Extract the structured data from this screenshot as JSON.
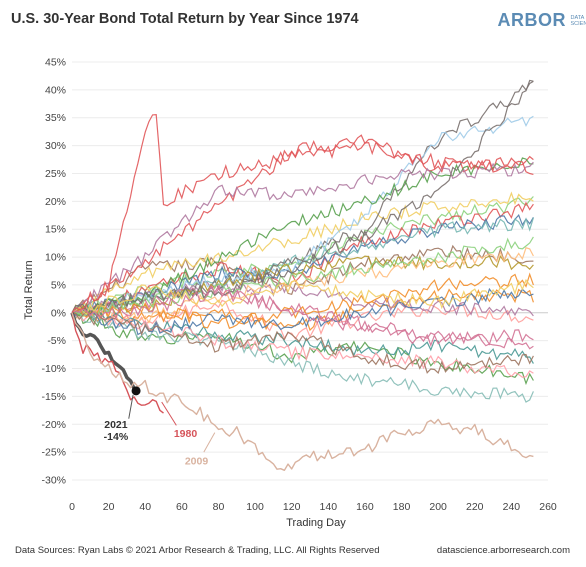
{
  "header": {
    "title": "U.S. 30-Year Bond Total Return by Year Since 1974",
    "brand_main": "ARBOR",
    "brand_sub": "DATA SCIENCE"
  },
  "footer": {
    "source": "Data Sources: Ryan Labs © 2021 Arbor Research & Trading, LLC. All Rights Reserved",
    "site": "datascience.arborresearch.com"
  },
  "colors": {
    "highlight_2021": "#555555",
    "highlight_1980": "#d6545a",
    "highlight_2009": "#d9b3a0"
  },
  "chart_data": {
    "type": "line",
    "title": "U.S. 30-Year Bond Total Return by Year Since 1974",
    "xlabel": "Trading Day",
    "ylabel": "Total Return",
    "xlim": [
      0,
      260
    ],
    "ylim": [
      -30,
      45
    ],
    "x_ticks": [
      0,
      20,
      40,
      60,
      80,
      100,
      120,
      140,
      160,
      180,
      200,
      220,
      240,
      260
    ],
    "y_ticks": [
      45,
      40,
      35,
      30,
      25,
      20,
      15,
      10,
      5,
      0,
      -5,
      -10,
      -15,
      -20,
      -25,
      -30
    ],
    "x_tick_labels": [
      "0",
      "20",
      "40",
      "60",
      "80",
      "100",
      "120",
      "140",
      "160",
      "180",
      "200",
      "220",
      "240",
      "260"
    ],
    "y_tick_labels": [
      "45%",
      "40%",
      "35%",
      "30%",
      "25%",
      "20%",
      "15%",
      "10%",
      "5%",
      "0%",
      "-5%",
      "-10%",
      "-15%",
      "-20%",
      "-25%",
      "-30%"
    ],
    "grid": "horizontal",
    "highlighted": [
      {
        "name": "2021",
        "label": "2021",
        "value_label": "-14%",
        "color": "#555555",
        "x": [
          0,
          4,
          8,
          12,
          16,
          20,
          24,
          28,
          32,
          35
        ],
        "y": [
          0,
          -3,
          -4.5,
          -3.8,
          -6,
          -7.5,
          -9.5,
          -10.8,
          -12.8,
          -14
        ]
      },
      {
        "name": "1980",
        "label": "1980",
        "color": "#d6545a",
        "x": [
          0,
          5,
          10,
          15,
          20,
          25,
          30,
          35,
          40,
          45,
          50
        ],
        "y": [
          0,
          -6.5,
          -5.5,
          -9,
          -8.5,
          -11,
          -14,
          -15.5,
          -17,
          -15,
          -18
        ]
      },
      {
        "name": "2009",
        "label": "2009",
        "color": "#d9b3a0",
        "x": [
          0,
          10,
          20,
          30,
          40,
          50,
          60,
          70,
          80,
          90,
          100,
          110,
          120,
          130,
          140,
          150,
          160,
          170,
          180,
          190,
          200,
          210,
          220,
          230,
          240,
          250,
          253
        ],
        "y": [
          0,
          -7,
          -10,
          -12.5,
          -13,
          -15,
          -16,
          -18,
          -21,
          -21.5,
          -24,
          -27,
          -27.5,
          -26,
          -25.5,
          -24.5,
          -25,
          -23,
          -21.5,
          -21,
          -19.5,
          -21,
          -21,
          -23,
          -24,
          -26.5,
          -26
        ]
      }
    ],
    "series": [
      {
        "color": "#ff9d9a",
        "x": [
          0,
          40,
          80,
          120,
          160,
          200,
          253
        ],
        "y": [
          0,
          -2,
          2,
          -4,
          -1,
          1,
          -1
        ]
      },
      {
        "color": "#9d7660",
        "x": [
          0,
          40,
          80,
          120,
          160,
          200,
          253
        ],
        "y": [
          0,
          8,
          9,
          4,
          9,
          11,
          10
        ]
      },
      {
        "color": "#f28e2b",
        "x": [
          0,
          40,
          80,
          120,
          160,
          200,
          253
        ],
        "y": [
          0,
          -1,
          0,
          -3,
          1,
          3,
          3
        ]
      },
      {
        "color": "#8cd17d",
        "x": [
          0,
          40,
          80,
          120,
          160,
          200,
          253
        ],
        "y": [
          0,
          4,
          7,
          9,
          14,
          17,
          20
        ]
      },
      {
        "color": "#e15759",
        "x": [
          0,
          40,
          80,
          120,
          160,
          200,
          253
        ],
        "y": [
          0,
          4,
          8,
          6,
          13,
          16,
          19
        ]
      },
      {
        "color": "#4e79a7",
        "x": [
          0,
          40,
          80,
          120,
          160,
          200,
          253
        ],
        "y": [
          0,
          3,
          7,
          7,
          12,
          15,
          17
        ]
      },
      {
        "color": "#59a14f",
        "x": [
          0,
          40,
          80,
          120,
          160,
          200,
          253
        ],
        "y": [
          0,
          -5,
          -4,
          -8,
          -6,
          -9,
          -12
        ]
      },
      {
        "color": "#b07aa1",
        "x": [
          0,
          40,
          80,
          120,
          160,
          200,
          253
        ],
        "y": [
          0,
          3,
          5,
          4,
          2,
          1,
          0
        ]
      },
      {
        "color": "#f1ce63",
        "x": [
          0,
          40,
          80,
          120,
          160,
          200,
          253
        ],
        "y": [
          0,
          7,
          10,
          13,
          17,
          19,
          21
        ]
      },
      {
        "color": "#76b7b2",
        "x": [
          0,
          40,
          80,
          120,
          160,
          200,
          253
        ],
        "y": [
          0,
          2,
          5,
          9,
          12,
          15,
          16
        ]
      },
      {
        "color": "#79706e",
        "x": [
          0,
          40,
          80,
          120,
          160,
          200,
          253
        ],
        "y": [
          0,
          2,
          5,
          9,
          15,
          31,
          41
        ]
      },
      {
        "color": "#a0cbe8",
        "x": [
          0,
          40,
          80,
          120,
          160,
          200,
          253
        ],
        "y": [
          0,
          3,
          6,
          8,
          18,
          31,
          35
        ]
      },
      {
        "color": "#d37295",
        "x": [
          0,
          40,
          80,
          120,
          160,
          200,
          253
        ],
        "y": [
          0,
          2,
          4,
          1,
          -2,
          -4,
          -6
        ]
      },
      {
        "color": "#b6992d",
        "x": [
          0,
          40,
          80,
          120,
          160,
          200,
          253
        ],
        "y": [
          0,
          1,
          5,
          8,
          9,
          9,
          9
        ]
      },
      {
        "color": "#ffbe7d",
        "x": [
          0,
          40,
          80,
          120,
          160,
          200,
          253
        ],
        "y": [
          0,
          -1,
          3,
          5,
          7,
          9,
          11
        ]
      },
      {
        "color": "#499894",
        "x": [
          0,
          40,
          80,
          120,
          160,
          200,
          253
        ],
        "y": [
          0,
          -2,
          -4,
          -5,
          -7,
          -6,
          -8
        ]
      },
      {
        "color": "#86bcb6",
        "x": [
          0,
          40,
          80,
          120,
          160,
          200,
          253
        ],
        "y": [
          0,
          -4,
          -5,
          -9,
          -12,
          -14,
          -15
        ]
      },
      {
        "color": "#e15759",
        "x": [
          0,
          40,
          80,
          120,
          160,
          200,
          253
        ],
        "y": [
          0,
          9,
          19,
          29,
          31,
          26,
          27
        ]
      },
      {
        "color": "#ff9da7",
        "x": [
          0,
          40,
          80,
          120,
          160,
          200,
          253
        ],
        "y": [
          0,
          -2,
          -5,
          -7,
          -8,
          -9,
          -11
        ]
      },
      {
        "color": "#59a14f",
        "x": [
          0,
          40,
          80,
          120,
          160,
          200,
          253
        ],
        "y": [
          0,
          3,
          10,
          16,
          20,
          25,
          27
        ]
      },
      {
        "color": "#4e79a7",
        "x": [
          0,
          40,
          80,
          120,
          160,
          200,
          253
        ],
        "y": [
          0,
          -3,
          -1,
          -2,
          0,
          2,
          4
        ]
      },
      {
        "color": "#f28e2b",
        "x": [
          0,
          40,
          80,
          120,
          160,
          200,
          253
        ],
        "y": [
          0,
          1,
          -2,
          0,
          2,
          5,
          6
        ]
      },
      {
        "color": "#b07aa1",
        "x": [
          0,
          40,
          80,
          120,
          160,
          200,
          253
        ],
        "y": [
          0,
          10,
          22,
          21,
          24,
          25,
          26
        ]
      },
      {
        "color": "#8cd17d",
        "x": [
          0,
          40,
          80,
          120,
          160,
          200,
          253
        ],
        "y": [
          0,
          2,
          4,
          6,
          8,
          10,
          13
        ]
      },
      {
        "color": "#9d7660",
        "x": [
          0,
          40,
          80,
          120,
          160,
          200,
          253
        ],
        "y": [
          0,
          -3,
          -6,
          -4,
          -8,
          -10,
          -8
        ]
      },
      {
        "color": "#79706e",
        "x": [
          0,
          40,
          80,
          120,
          160,
          200,
          253
        ],
        "y": [
          0,
          3,
          4,
          8,
          14,
          22,
          42
        ]
      },
      {
        "color": "#f1ce63",
        "x": [
          0,
          40,
          80,
          120,
          160,
          200,
          253
        ],
        "y": [
          0,
          4,
          2,
          5,
          3,
          2,
          5
        ]
      },
      {
        "color": "#d37295",
        "x": [
          0,
          40,
          80,
          120,
          160,
          200,
          253
        ],
        "y": [
          0,
          0,
          4,
          0,
          -3,
          -5,
          -4
        ]
      },
      {
        "color": "#e15759",
        "x": [
          0,
          20,
          45,
          50,
          80,
          120,
          160,
          200,
          253
        ],
        "y": [
          0,
          5,
          38,
          20,
          25,
          28,
          30,
          27,
          26
        ]
      }
    ]
  }
}
